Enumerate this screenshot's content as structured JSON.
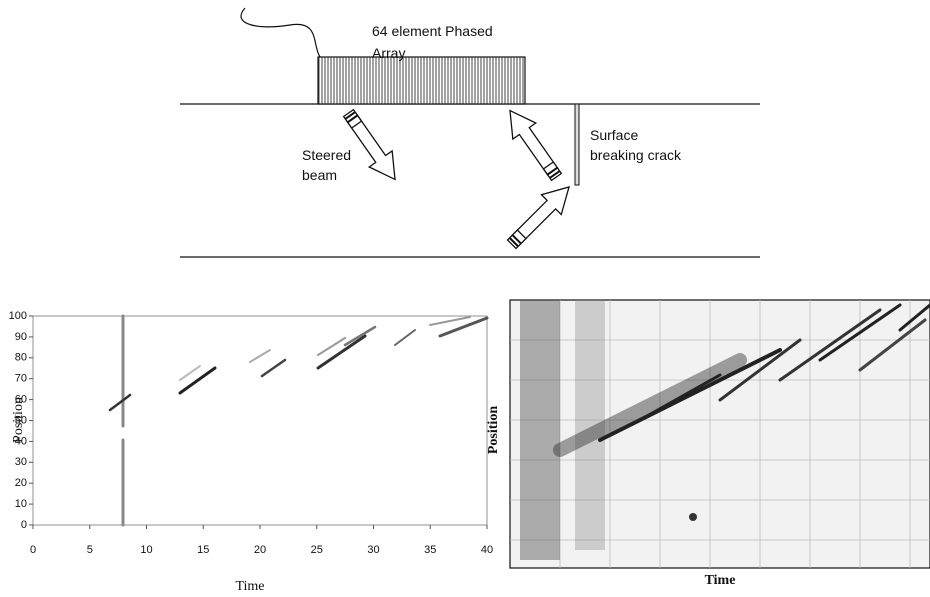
{
  "diagram": {
    "array_label": [
      "64 element Phased",
      "Array"
    ],
    "beam_label": [
      "Steered",
      "beam"
    ],
    "crack_label": [
      "Surface",
      "breaking crack"
    ]
  },
  "chart_data": [
    {
      "type": "heatmap",
      "xlabel": "Time",
      "ylabel": "Position",
      "xlim": [
        0,
        40
      ],
      "xticks": [
        0,
        5,
        10,
        15,
        20,
        25,
        30,
        35,
        40
      ],
      "ylim": [
        0,
        100
      ],
      "yticks": [
        0,
        10,
        20,
        30,
        40,
        50,
        60,
        70,
        80,
        90,
        100
      ]
    },
    {
      "type": "image",
      "xlabel": "Time",
      "ylabel": "Position"
    }
  ]
}
